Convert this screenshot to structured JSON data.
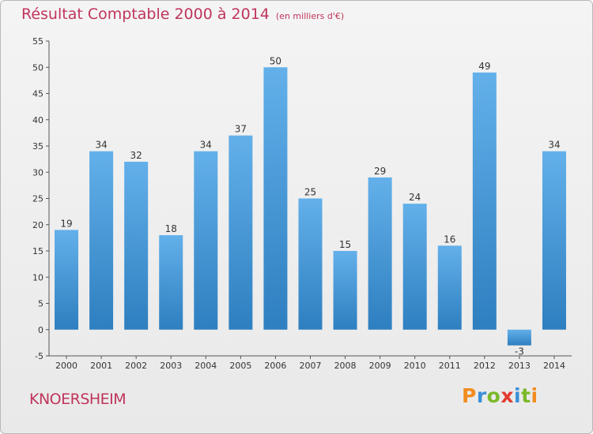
{
  "header": {
    "title": "Résultat Comptable 2000 à 2014",
    "subtitle": "(en milliers d'€)"
  },
  "footer": {
    "commune": "KNOERSHEIM",
    "logo_text": "Proxiti",
    "logo_colors": [
      "#f28c1e",
      "#3a8fd8",
      "#7ab929",
      "#e23a2e",
      "#3a8fd8",
      "#7ab929",
      "#f28c1e"
    ]
  },
  "chart_data": {
    "type": "bar",
    "title": "Résultat Comptable 2000 à 2014",
    "subtitle": "(en milliers d'€)",
    "categories": [
      "2000",
      "2001",
      "2002",
      "2003",
      "2004",
      "2005",
      "2006",
      "2007",
      "2008",
      "2009",
      "2010",
      "2011",
      "2012",
      "2013",
      "2014"
    ],
    "values": [
      19,
      34,
      32,
      18,
      34,
      37,
      50,
      25,
      15,
      29,
      24,
      16,
      49,
      -3,
      34
    ],
    "ylim": [
      -5,
      55
    ],
    "yticks": [
      -5,
      0,
      5,
      10,
      15,
      20,
      25,
      30,
      35,
      40,
      45,
      50,
      55
    ],
    "grid": false,
    "bar_color_top": "#63b0ea",
    "bar_color_bottom": "#2e7fc0"
  }
}
